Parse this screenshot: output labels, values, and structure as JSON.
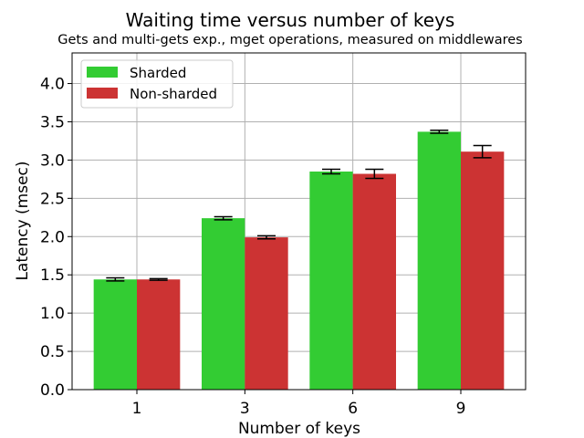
{
  "chart_data": {
    "type": "bar",
    "title": "Waiting time versus number of keys",
    "subtitle": "Gets and multi-gets exp., mget operations, measured on middlewares",
    "xlabel": "Number of keys",
    "ylabel": "Latency (msec)",
    "categories": [
      "1",
      "3",
      "6",
      "9"
    ],
    "ylim": [
      0,
      4.4
    ],
    "yticks": [
      "0.0",
      "0.5",
      "1.0",
      "1.5",
      "2.0",
      "2.5",
      "3.0",
      "3.5",
      "4.0"
    ],
    "grid": true,
    "legend_position": "top-left",
    "series": [
      {
        "name": "Sharded",
        "color": "#33cc33",
        "values": [
          1.44,
          2.24,
          2.85,
          3.37
        ],
        "errors": [
          0.02,
          0.02,
          0.03,
          0.02
        ]
      },
      {
        "name": "Non-sharded",
        "color": "#cc3333",
        "values": [
          1.44,
          1.99,
          2.82,
          3.11
        ],
        "errors": [
          0.01,
          0.02,
          0.06,
          0.08
        ]
      }
    ]
  }
}
